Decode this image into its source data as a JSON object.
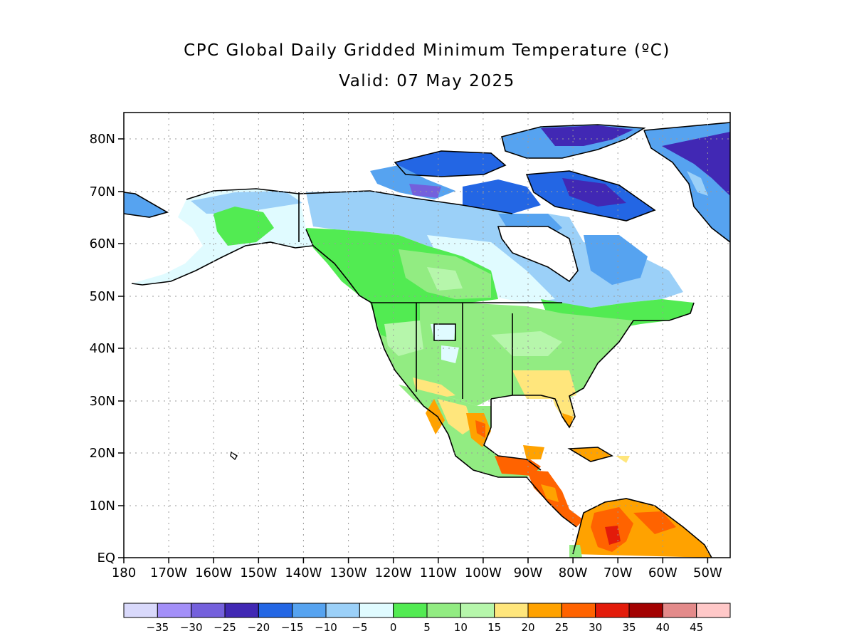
{
  "title": "CPC Global Daily Gridded Minimum Temperature (ºC)",
  "subtitle": "Valid: 07 May 2025",
  "map": {
    "projection": "cylindrical equidistant",
    "lon_range": [
      -180,
      -45
    ],
    "lat_range": [
      0,
      85
    ],
    "grid": "dotted",
    "lat_labels": [
      "80N",
      "70N",
      "60N",
      "50N",
      "40N",
      "30N",
      "20N",
      "10N",
      "EQ"
    ],
    "lon_labels": [
      "180",
      "170W",
      "160W",
      "150W",
      "140W",
      "130W",
      "120W",
      "110W",
      "100W",
      "90W",
      "80W",
      "70W",
      "60W",
      "50W"
    ]
  },
  "colorbar": {
    "colors": [
      "#d9d9fb",
      "#a38ff8",
      "#7460dc",
      "#4128b4",
      "#2366e4",
      "#56a3f0",
      "#9bd0f8",
      "#e0fbff",
      "#52eb52",
      "#92ec82",
      "#b6f6ab",
      "#ffe67c",
      "#ffa200",
      "#ff6300",
      "#e31b0a",
      "#a30101",
      "#e38a8a",
      "#ffc8c8"
    ],
    "labels": [
      "-35",
      "-30",
      "-25",
      "-20",
      "-15",
      "-10",
      "-5",
      "0",
      "5",
      "10",
      "15",
      "20",
      "25",
      "30",
      "35",
      "40",
      "45"
    ]
  }
}
